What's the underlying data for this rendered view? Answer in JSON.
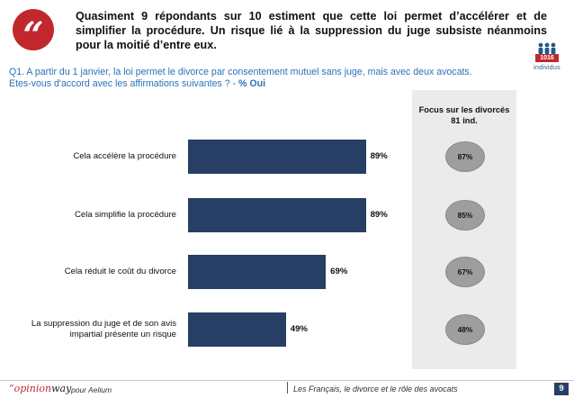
{
  "header": {
    "quote_mark": "“",
    "headline": "Quasiment 9 répondants sur 10 estiment que cette loi permet d’accélérer et de simplifier la procédure. Un risque lié à la suppression du juge subsiste néanmoins pour la moitié d’entre eux."
  },
  "sample": {
    "count": "1016",
    "unit": "individus"
  },
  "question": {
    "text": "Q1. A partir du 1 janvier, la loi permet le divorce par consentement mutuel sans juge, mais avec deux avocats. Etes-vous d'accord avec les affirmations suivantes ? - ",
    "emphasis": "% Oui"
  },
  "focus": {
    "title": "Focus sur les divorcés",
    "subtitle": "81 ind."
  },
  "chart_data": {
    "type": "bar",
    "orientation": "horizontal",
    "title": "",
    "xlabel": "",
    "ylabel": "",
    "xlim": [
      0,
      100
    ],
    "categories": [
      "Cela accélère la procédure",
      "Cela simplifie la procédure",
      "Cela réduit le coût du divorce",
      "La suppression du juge et de son avis impartial présente un risque"
    ],
    "values": [
      89,
      89,
      69,
      49
    ],
    "value_labels": [
      "89%",
      "89%",
      "69%",
      "49%"
    ],
    "bar_color": "#283f65",
    "focus_series": {
      "name": "Focus sur les divorcés - 81 ind.",
      "values": [
        87,
        85,
        67,
        48
      ],
      "labels": [
        "87%",
        "85%",
        "67%",
        "48%"
      ]
    }
  },
  "footer": {
    "brand_opinion": "“opinion",
    "brand_way": "way",
    "pour": "pour  Aelium",
    "study": "Les Français, le divorce et le rôle des avocats",
    "page": "9"
  },
  "colors": {
    "accent": "#c0282e",
    "bar": "#283f65",
    "question": "#2a72b8"
  }
}
